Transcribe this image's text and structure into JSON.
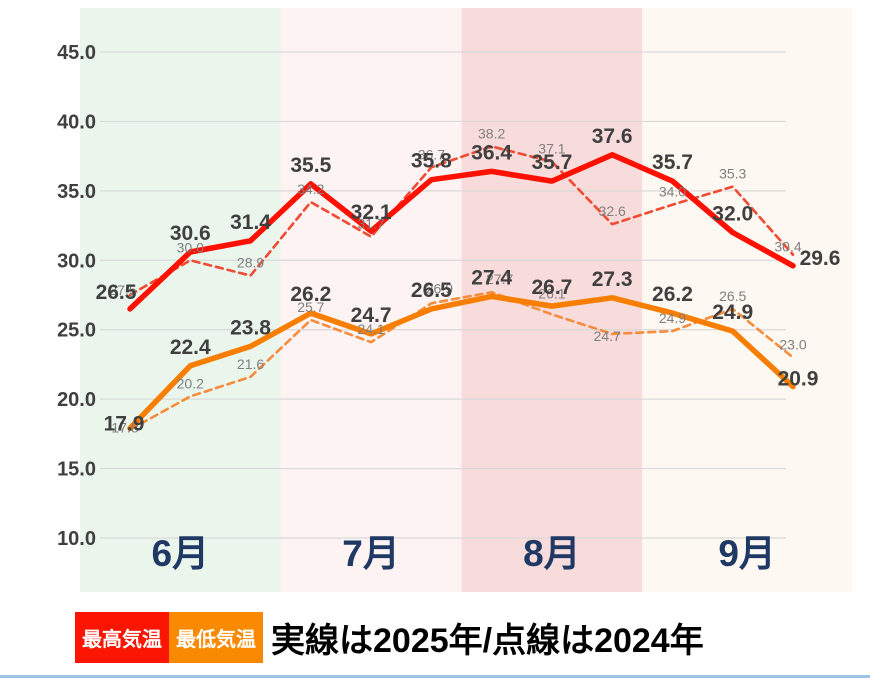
{
  "chart_data": {
    "type": "line",
    "title": "",
    "months": [
      {
        "label": "6月",
        "band_color": "#EAF6EC"
      },
      {
        "label": "7月",
        "band_color": "#FCF3F2"
      },
      {
        "label": "8月",
        "band_color": "#F8DCDB"
      },
      {
        "label": "9月",
        "band_color": "#FDF8F1"
      }
    ],
    "points_per_month": 3,
    "y_axis": {
      "min": 10,
      "max": 45,
      "step": 5,
      "tick_format": "one-decimal"
    },
    "series": [
      {
        "id": "max-2025",
        "name": "最高気温",
        "year": "2025",
        "line": "solid",
        "color": "#FF1000",
        "values": [
          26.5,
          30.6,
          31.4,
          35.5,
          32.1,
          35.8,
          36.4,
          35.7,
          37.6,
          35.7,
          32.0,
          29.6
        ]
      },
      {
        "id": "max-2024",
        "name": "最高気温",
        "year": "2024",
        "line": "dashed",
        "color": "#F04A32",
        "values": [
          27.5,
          30.0,
          28.9,
          34.2,
          31.7,
          36.7,
          38.2,
          37.1,
          32.6,
          34.0,
          35.3,
          30.4
        ]
      },
      {
        "id": "min-2025",
        "name": "最低気温",
        "year": "2025",
        "line": "solid",
        "color": "#F87E01",
        "values": [
          17.9,
          22.4,
          23.8,
          26.2,
          24.7,
          26.5,
          27.4,
          26.7,
          27.3,
          26.2,
          24.9,
          20.9
        ]
      },
      {
        "id": "min-2024",
        "name": "最低気温",
        "year": "2024",
        "line": "dashed",
        "color": "#F68C3C",
        "values": [
          17.8,
          20.2,
          21.6,
          25.7,
          24.1,
          26.9,
          27.7,
          26.1,
          24.7,
          24.9,
          26.5,
          23.0
        ]
      }
    ],
    "style": {
      "solid_label_color": "#3F3F3F",
      "dashed_label_color": "#7F7F7F",
      "axis_label_color": "#404040",
      "month_label_color": "#1F3864",
      "gridline_color": "#D9D9D9"
    }
  },
  "legend": {
    "max_label": "最高気温",
    "max_color": "#FB1502",
    "min_label": "最低気温",
    "min_color": "#F98A00",
    "note": "実線は2025年/点線は2024年"
  },
  "footer": {
    "divider_color": "#9DC3E6"
  }
}
